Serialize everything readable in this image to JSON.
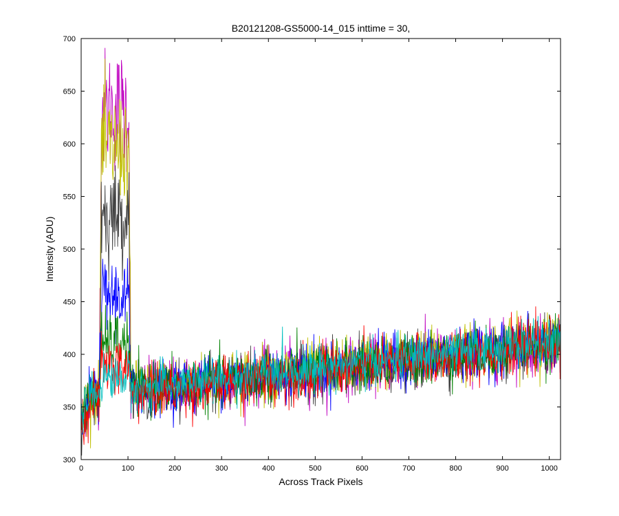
{
  "chart_data": {
    "type": "line",
    "title": "B20121208-GS5000-14_015 inttime = 30,",
    "xlabel": "Across Track Pixels",
    "ylabel": "Intensity (ADU)",
    "xlim": [
      0,
      1024
    ],
    "ylim": [
      300,
      700
    ],
    "xticks": [
      0,
      100,
      200,
      300,
      400,
      500,
      600,
      700,
      800,
      900,
      1000
    ],
    "yticks": [
      300,
      350,
      400,
      450,
      500,
      550,
      600,
      650,
      700
    ],
    "grid": false,
    "legend": "none",
    "peak_range": [
      40,
      105
    ],
    "series": [
      {
        "color": "#bf00bf",
        "baseline_start": 360,
        "baseline_end": 410,
        "peak_level": 632,
        "noise": 13
      },
      {
        "color": "#bfbf00",
        "baseline_start": 362,
        "baseline_end": 412,
        "peak_level": 596,
        "noise": 13
      },
      {
        "color": "#404040",
        "baseline_start": 358,
        "baseline_end": 408,
        "peak_level": 533,
        "noise": 12
      },
      {
        "color": "#0000ff",
        "baseline_start": 360,
        "baseline_end": 412,
        "peak_level": 455,
        "noise": 12
      },
      {
        "color": "#008000",
        "baseline_start": 360,
        "baseline_end": 410,
        "peak_level": 410,
        "noise": 12
      },
      {
        "color": "#ff0000",
        "baseline_start": 356,
        "baseline_end": 410,
        "peak_level": 388,
        "noise": 12
      },
      {
        "color": "#00bfbf",
        "baseline_start": 362,
        "baseline_end": 413,
        "peak_level": 378,
        "noise": 10
      }
    ]
  }
}
